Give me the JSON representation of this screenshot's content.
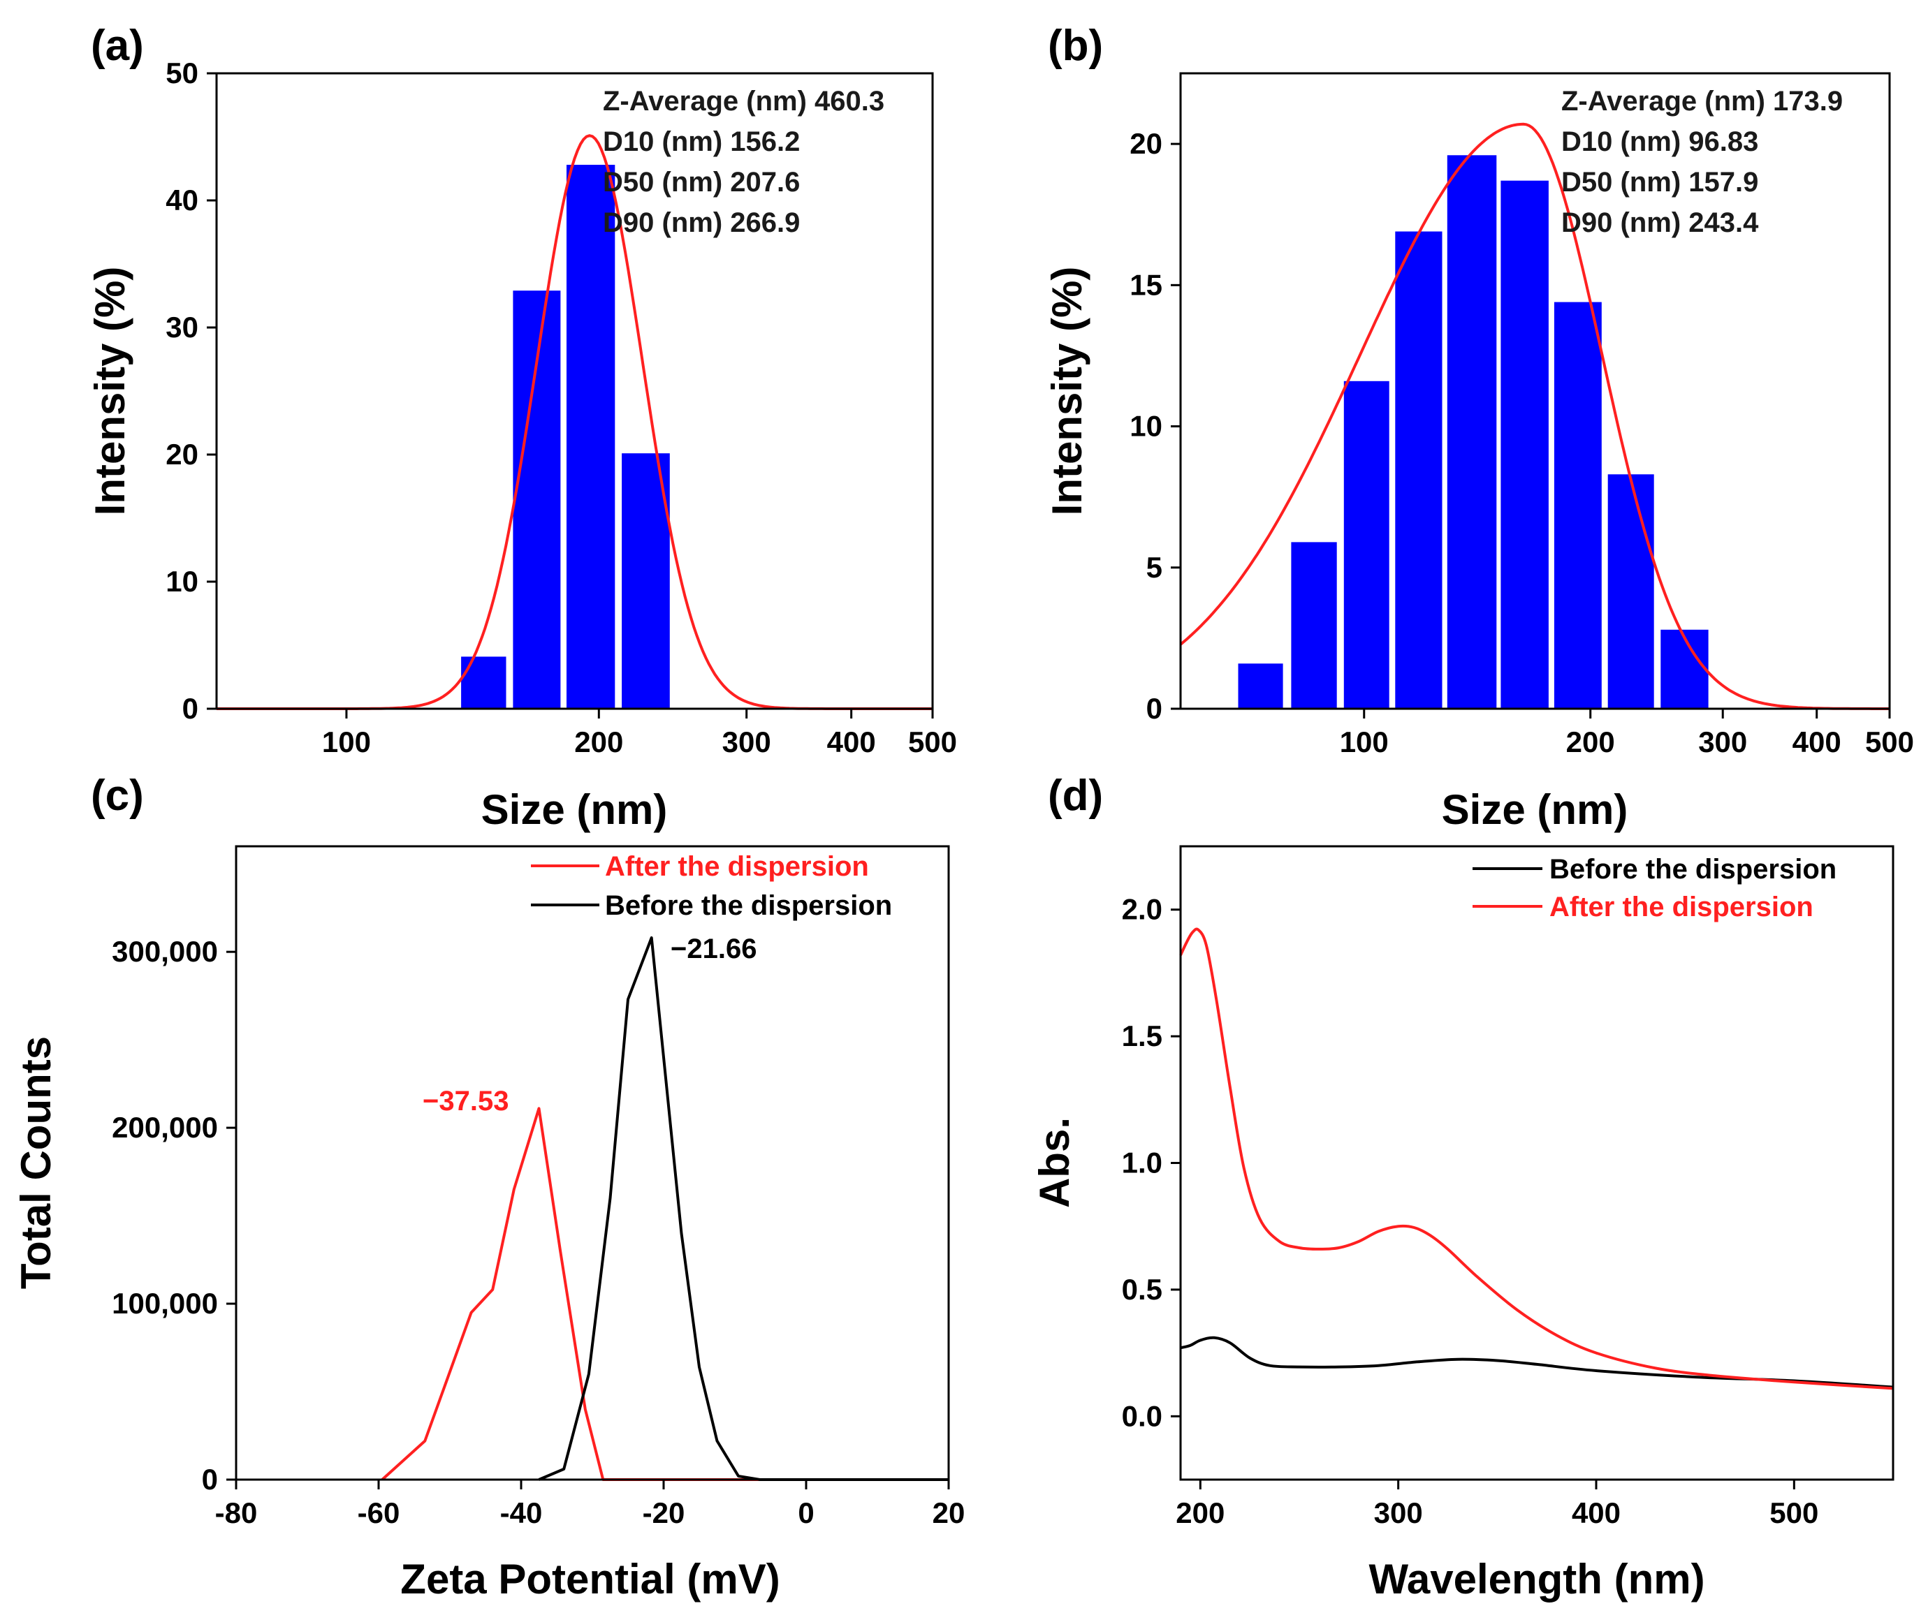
{
  "figure": {
    "colors": {
      "bar": "#0000ff",
      "red": "#ff2020",
      "black": "#000000"
    }
  },
  "chart_data": [
    {
      "panel": "(a)",
      "type": "bar",
      "xscale": "log",
      "xlabel": "Size (nm)",
      "ylabel": "Intensity (%)",
      "xlim": [
        70,
        500
      ],
      "ylim": [
        0,
        50
      ],
      "xticks": [
        100,
        200,
        300,
        400,
        500
      ],
      "yticks": [
        0,
        10,
        20,
        30,
        40,
        50
      ],
      "bars": [
        {
          "lo": 137,
          "hi": 155,
          "value": 4.1
        },
        {
          "lo": 158,
          "hi": 180,
          "value": 32.9
        },
        {
          "lo": 183,
          "hi": 209,
          "value": 42.8
        },
        {
          "lo": 213,
          "hi": 243,
          "value": 20.1
        }
      ],
      "fit": {
        "type": "lognormal",
        "peak_x": 195,
        "peak_y": 45.1,
        "sigma_ln": 0.145
      },
      "stats": [
        "Z-Average (nm) 460.3",
        "D10 (nm) 156.2",
        "D50 (nm) 207.6",
        "D90 (nm) 266.9"
      ]
    },
    {
      "panel": "(b)",
      "type": "bar",
      "xscale": "log",
      "xlabel": "Size (nm)",
      "ylabel": "Intensity (%)",
      "xlim": [
        57,
        500
      ],
      "ylim": [
        0,
        22.5
      ],
      "xticks": [
        100,
        200,
        300,
        400,
        500
      ],
      "yticks": [
        0,
        5,
        10,
        15,
        20
      ],
      "bars": [
        {
          "lo": 68,
          "hi": 78,
          "value": 1.6
        },
        {
          "lo": 80,
          "hi": 92,
          "value": 5.9
        },
        {
          "lo": 94,
          "hi": 108,
          "value": 11.6
        },
        {
          "lo": 110,
          "hi": 127,
          "value": 16.9
        },
        {
          "lo": 129,
          "hi": 150,
          "value": 19.6
        },
        {
          "lo": 152,
          "hi": 176,
          "value": 18.7
        },
        {
          "lo": 179,
          "hi": 207,
          "value": 14.4
        },
        {
          "lo": 211,
          "hi": 243,
          "value": 8.3
        },
        {
          "lo": 248,
          "hi": 287,
          "value": 2.8
        }
      ],
      "fit": {
        "type": "skew-lognormal",
        "peak_x": 163,
        "peak_y": 20.7,
        "sigma_left": 0.5,
        "sigma_right": 0.24
      },
      "stats": [
        "Z-Average (nm) 173.9",
        "D10 (nm) 96.83",
        "D50 (nm) 157.9",
        "D90 (nm) 243.4"
      ]
    },
    {
      "panel": "(c)",
      "type": "line",
      "xlabel": "Zeta Potential (mV)",
      "ylabel": "Total Counts",
      "xlim": [
        -80,
        20
      ],
      "ylim": [
        0,
        360000
      ],
      "xticks": [
        -80,
        -60,
        -40,
        -20,
        0,
        20
      ],
      "xtick_labels": [
        "-80",
        "-60",
        "-40",
        "-20",
        "0",
        "20"
      ],
      "yticks": [
        0,
        100000,
        200000,
        300000
      ],
      "ytick_labels": [
        "0",
        "100,000",
        "200,000",
        "300,000"
      ],
      "legend": [
        "After the dispersion",
        "Before the dispersion"
      ],
      "series": [
        {
          "name": "After the dispersion",
          "color": "red",
          "x": [
            -59.5,
            -53.5,
            -47,
            -44,
            -41,
            -37.5,
            -34.5,
            -31,
            -28.5,
            20
          ],
          "y": [
            0,
            22000,
            95000,
            108000,
            165000,
            211000,
            130000,
            40000,
            0,
            0
          ]
        },
        {
          "name": "Before the dispersion",
          "color": "black",
          "x": [
            -37.5,
            -34,
            -30.5,
            -27.5,
            -25,
            -21.7,
            -19.5,
            -17.5,
            -15,
            -12.5,
            -9.5,
            -6.5,
            20
          ],
          "y": [
            0,
            6000,
            60000,
            160000,
            273000,
            308000,
            220000,
            140000,
            64000,
            22000,
            2000,
            0,
            0
          ]
        }
      ],
      "peak_labels": [
        {
          "text": "−37.53",
          "x": -37.53,
          "color": "red"
        },
        {
          "text": "−21.66",
          "x": -21.66,
          "color": "black"
        }
      ]
    },
    {
      "panel": "(d)",
      "type": "line",
      "xlabel": "Wavelength (nm)",
      "ylabel": "Abs.",
      "xlim": [
        190,
        550
      ],
      "ylim": [
        -0.25,
        2.25
      ],
      "xticks": [
        200,
        300,
        400,
        500
      ],
      "yticks": [
        0,
        0.5,
        1,
        1.5,
        2
      ],
      "ytick_labels": [
        "0.0",
        "0.5",
        "1.0",
        "1.5",
        "2.0"
      ],
      "legend": [
        "Before the dispersion",
        "After the dispersion"
      ],
      "series": [
        {
          "name": "Before the dispersion",
          "color": "black",
          "x": [
            190,
            195,
            200,
            207,
            215,
            225,
            235,
            250,
            270,
            290,
            310,
            330,
            350,
            370,
            400,
            450,
            500,
            550
          ],
          "y": [
            0.27,
            0.28,
            0.3,
            0.31,
            0.29,
            0.23,
            0.2,
            0.195,
            0.195,
            0.2,
            0.215,
            0.225,
            0.22,
            0.205,
            0.18,
            0.155,
            0.14,
            0.115
          ]
        },
        {
          "name": "After the dispersion",
          "color": "red",
          "x": [
            190,
            193,
            196,
            199,
            203,
            208,
            215,
            222,
            230,
            240,
            250,
            260,
            270,
            280,
            290,
            300,
            308,
            316,
            325,
            340,
            360,
            380,
            400,
            430,
            460,
            500,
            550
          ],
          "y": [
            1.82,
            1.87,
            1.91,
            1.92,
            1.86,
            1.65,
            1.3,
            0.98,
            0.78,
            0.69,
            0.665,
            0.66,
            0.665,
            0.69,
            0.73,
            0.75,
            0.745,
            0.715,
            0.66,
            0.55,
            0.42,
            0.32,
            0.25,
            0.19,
            0.16,
            0.135,
            0.11
          ]
        }
      ]
    }
  ]
}
